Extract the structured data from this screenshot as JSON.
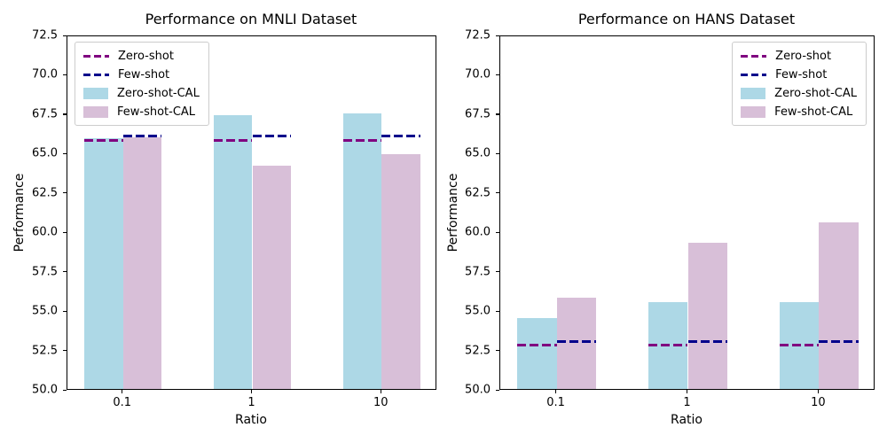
{
  "figure": {
    "background": "#ffffff",
    "axis_color": "#000000"
  },
  "chart_data": [
    {
      "type": "bar",
      "title": "Performance on MNLI Dataset",
      "xlabel": "Ratio",
      "ylabel": "Performance",
      "categories": [
        "0.1",
        "1",
        "10"
      ],
      "ylim": [
        50.0,
        72.5
      ],
      "yticks": [
        "50.0",
        "52.5",
        "55.0",
        "57.5",
        "60.0",
        "62.5",
        "65.0",
        "67.5",
        "70.0",
        "72.5"
      ],
      "grid": false,
      "legend_position": "upper-left",
      "legend": [
        {
          "label": "Zero-shot",
          "type": "line",
          "color": "#800080"
        },
        {
          "label": "Few-shot",
          "type": "line",
          "color": "#00008B"
        },
        {
          "label": "Zero-shot-CAL",
          "type": "bar",
          "color": "#ADD8E6"
        },
        {
          "label": "Few-shot-CAL",
          "type": "bar",
          "color": "#D8BFD8"
        }
      ],
      "series": [
        {
          "name": "Zero-shot",
          "type": "hline",
          "color": "#800080",
          "values": [
            65.9,
            65.9,
            65.9
          ]
        },
        {
          "name": "Few-shot",
          "type": "hline",
          "color": "#00008B",
          "values": [
            66.2,
            66.2,
            66.2
          ]
        },
        {
          "name": "Zero-shot-CAL",
          "type": "bar",
          "color": "#ADD8E6",
          "values": [
            65.9,
            67.4,
            67.5
          ]
        },
        {
          "name": "Few-shot-CAL",
          "type": "bar",
          "color": "#D8BFD8",
          "values": [
            66.0,
            64.2,
            64.9
          ]
        }
      ]
    },
    {
      "type": "bar",
      "title": "Performance on HANS Dataset",
      "xlabel": "Ratio",
      "ylabel": "Performance",
      "categories": [
        "0.1",
        "1",
        "10"
      ],
      "ylim": [
        50.0,
        72.5
      ],
      "yticks": [
        "50.0",
        "52.5",
        "55.0",
        "57.5",
        "60.0",
        "62.5",
        "65.0",
        "67.5",
        "70.0",
        "72.5"
      ],
      "grid": false,
      "legend_position": "upper-right",
      "legend": [
        {
          "label": "Zero-shot",
          "type": "line",
          "color": "#800080"
        },
        {
          "label": "Few-shot",
          "type": "line",
          "color": "#00008B"
        },
        {
          "label": "Zero-shot-CAL",
          "type": "bar",
          "color": "#ADD8E6"
        },
        {
          "label": "Few-shot-CAL",
          "type": "bar",
          "color": "#D8BFD8"
        }
      ],
      "series": [
        {
          "name": "Zero-shot",
          "type": "hline",
          "color": "#800080",
          "values": [
            52.9,
            52.9,
            52.9
          ]
        },
        {
          "name": "Few-shot",
          "type": "hline",
          "color": "#00008B",
          "values": [
            53.1,
            53.1,
            53.1
          ]
        },
        {
          "name": "Zero-shot-CAL",
          "type": "bar",
          "color": "#ADD8E6",
          "values": [
            54.5,
            55.5,
            55.5
          ]
        },
        {
          "name": "Few-shot-CAL",
          "type": "bar",
          "color": "#D8BFD8",
          "values": [
            55.8,
            59.3,
            60.6
          ]
        }
      ]
    }
  ]
}
